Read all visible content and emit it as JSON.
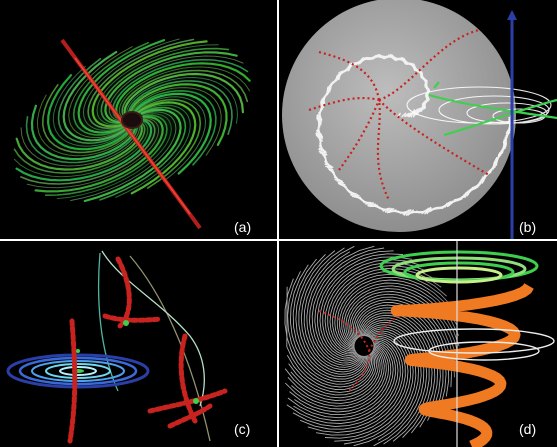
{
  "figure": {
    "panels": [
      {
        "id": "a",
        "label": "(a)",
        "subject": "green-spiral-streamlines-red-axis"
      },
      {
        "id": "b",
        "label": "(b)",
        "subject": "grey-sphere-red-separatrices-blue-axis"
      },
      {
        "id": "c",
        "label": "(c)",
        "subject": "blue-disk-red-tubes"
      },
      {
        "id": "d",
        "label": "(d)",
        "subject": "orange-helical-funnel-white-streamlines"
      }
    ],
    "colors": {
      "background": "#000000",
      "border": "#ffffff",
      "label": "#ffffff",
      "green": "#3fcf4f",
      "red": "#c8231e",
      "grey": "#a9a9a9",
      "blue": "#2b3fa8",
      "orange": "#f07a22"
    }
  }
}
